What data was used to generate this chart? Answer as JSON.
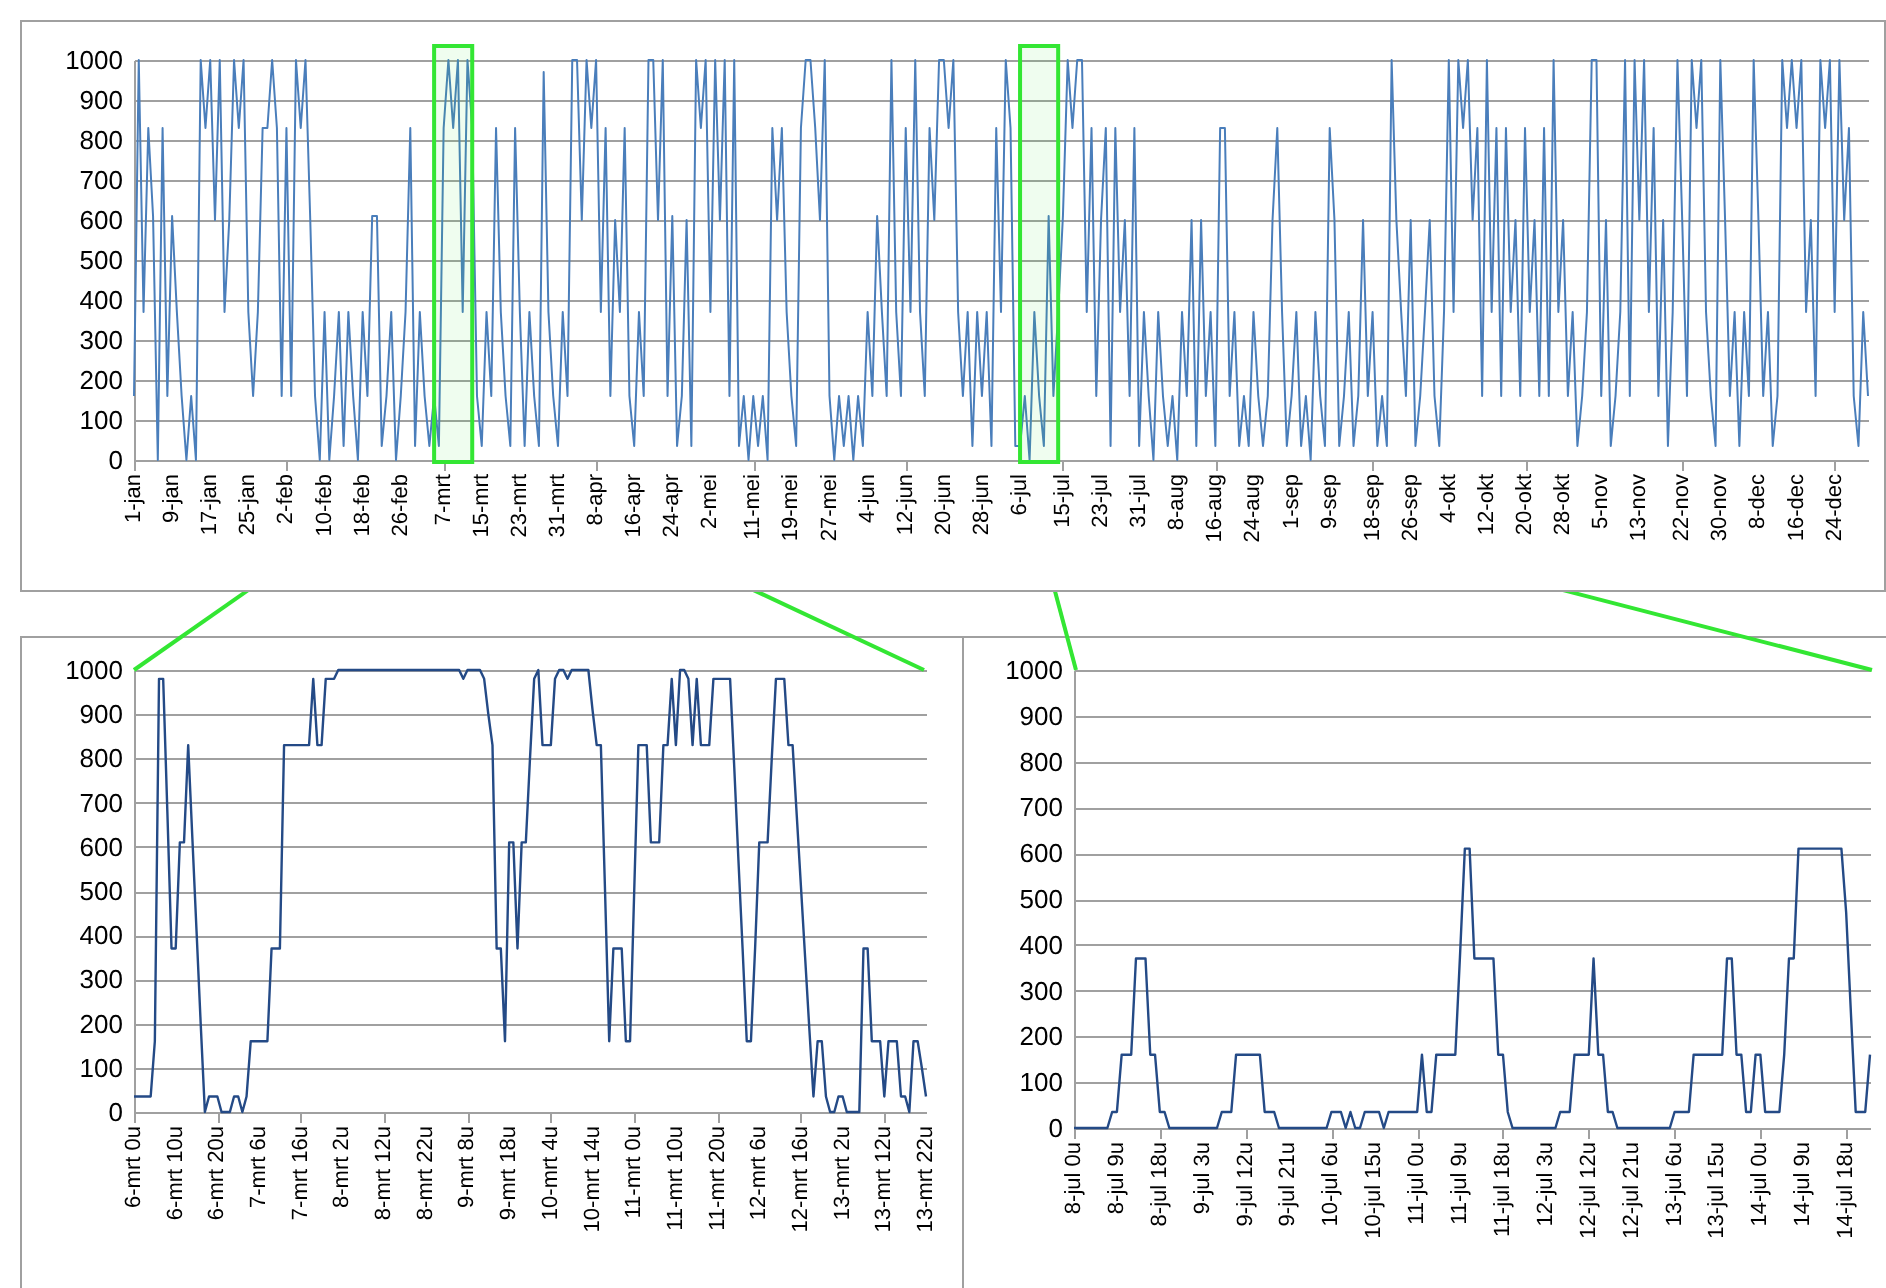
{
  "chart_data": [
    {
      "type": "line",
      "xlim": [
        "--01-01",
        "--12-31"
      ],
      "ylim": [
        0,
        1000
      ],
      "yticks": [
        0,
        100,
        200,
        300,
        400,
        500,
        600,
        700,
        800,
        900,
        1000
      ],
      "xticks": [
        {
          "value": "--01-01",
          "label": "1-jan"
        },
        {
          "value": "--01-09",
          "label": "9-jan"
        },
        {
          "value": "--01-17",
          "label": "17-jan"
        },
        {
          "value": "--01-25",
          "label": "25-jan"
        },
        {
          "value": "--02-02",
          "label": "2-feb"
        },
        {
          "value": "--02-10",
          "label": "10-feb"
        },
        {
          "value": "--02-18",
          "label": "18-feb"
        },
        {
          "value": "--02-26",
          "label": "26-feb"
        },
        {
          "value": "--03-07",
          "label": "7-mrt"
        },
        {
          "value": "--03-15",
          "label": "15-mrt"
        },
        {
          "value": "--03-23",
          "label": "23-mrt"
        },
        {
          "value": "--03-31",
          "label": "31-mrt"
        },
        {
          "value": "--04-08",
          "label": "8-apr"
        },
        {
          "value": "--04-16",
          "label": "16-apr"
        },
        {
          "value": "--04-24",
          "label": "24-apr"
        },
        {
          "value": "--05-02",
          "label": "2-mei"
        },
        {
          "value": "--05-11",
          "label": "11-mei"
        },
        {
          "value": "--05-19",
          "label": "19-mei"
        },
        {
          "value": "--05-27",
          "label": "27-mei"
        },
        {
          "value": "--06-04",
          "label": "4-jun"
        },
        {
          "value": "--06-12",
          "label": "12-jun"
        },
        {
          "value": "--06-20",
          "label": "20-jun"
        },
        {
          "value": "--06-28",
          "label": "28-jun"
        },
        {
          "value": "--07-06",
          "label": "6-jul"
        },
        {
          "value": "--07-15",
          "label": "15-jul"
        },
        {
          "value": "--07-23",
          "label": "23-jul"
        },
        {
          "value": "--07-31",
          "label": "31-jul"
        },
        {
          "value": "--08-08",
          "label": "8-aug"
        },
        {
          "value": "--08-16",
          "label": "16-aug"
        },
        {
          "value": "--08-24",
          "label": "24-aug"
        },
        {
          "value": "--09-01",
          "label": "1-sep"
        },
        {
          "value": "--09-09",
          "label": "9-sep"
        },
        {
          "value": "--09-18",
          "label": "18-sep"
        },
        {
          "value": "--09-26",
          "label": "26-sep"
        },
        {
          "value": "--10-04",
          "label": "4-okt"
        },
        {
          "value": "--10-12",
          "label": "12-okt"
        },
        {
          "value": "--10-20",
          "label": "20-okt"
        },
        {
          "value": "--10-28",
          "label": "28-okt"
        },
        {
          "value": "--11-05",
          "label": "5-nov"
        },
        {
          "value": "--11-13",
          "label": "13-nov"
        },
        {
          "value": "--11-22",
          "label": "22-nov"
        },
        {
          "value": "--11-30",
          "label": "30-nov"
        },
        {
          "value": "--12-08",
          "label": "8-dec"
        },
        {
          "value": "--12-16",
          "label": "16-dec"
        },
        {
          "value": "--12-24",
          "label": "24-dec"
        }
      ],
      "grid": "y",
      "bands": [
        {
          "axis": "x",
          "from": "--03-05",
          "to": "--03-13",
          "color": "#33e633"
        },
        {
          "axis": "x",
          "from": "--07-06",
          "to": "--07-14",
          "color": "#33e633"
        }
      ],
      "x": [
        "--01-01",
        "--01-02",
        "--01-03",
        "--01-04",
        "--01-05",
        "--01-06",
        "--01-07",
        "--01-08",
        "--01-09",
        "--01-10",
        "--01-11",
        "--01-12",
        "--01-13",
        "--01-14",
        "--01-15",
        "--01-16",
        "--01-17",
        "--01-18",
        "--01-19",
        "--01-20",
        "--01-21",
        "--01-22",
        "--01-23",
        "--01-24",
        "--01-25",
        "--01-26",
        "--01-27",
        "--01-28",
        "--01-29",
        "--01-30",
        "--01-31",
        "--02-01",
        "--02-02",
        "--02-03",
        "--02-04",
        "--02-05",
        "--02-06",
        "--02-07",
        "--02-08",
        "--02-09",
        "--02-10",
        "--02-11",
        "--02-12",
        "--02-13",
        "--02-14",
        "--02-15",
        "--02-16",
        "--02-17",
        "--02-18",
        "--02-19",
        "--02-20",
        "--02-21",
        "--02-22",
        "--02-23",
        "--02-24",
        "--02-25",
        "--02-26",
        "--02-27",
        "--02-28",
        "--03-01",
        "--03-02",
        "--03-03",
        "--03-04",
        "--03-05",
        "--03-06",
        "--03-07",
        "--03-08",
        "--03-09",
        "--03-10",
        "--03-11",
        "--03-12",
        "--03-13",
        "--03-14",
        "--03-15",
        "--03-16",
        "--03-17",
        "--03-18",
        "--03-19",
        "--03-20",
        "--03-21",
        "--03-22",
        "--03-23",
        "--03-24",
        "--03-25",
        "--03-26",
        "--03-27",
        "--03-28",
        "--03-29",
        "--03-30",
        "--03-31",
        "--04-01",
        "--04-02",
        "--04-03",
        "--04-04",
        "--04-05",
        "--04-06",
        "--04-07",
        "--04-08",
        "--04-09",
        "--04-10",
        "--04-11",
        "--04-12",
        "--04-13",
        "--04-14",
        "--04-15",
        "--04-16",
        "--04-17",
        "--04-18",
        "--04-19",
        "--04-20",
        "--04-21",
        "--04-22",
        "--04-23",
        "--04-24",
        "--04-25",
        "--04-26",
        "--04-27",
        "--04-28",
        "--04-29",
        "--04-30",
        "--05-01",
        "--05-02",
        "--05-03",
        "--05-04",
        "--05-05",
        "--05-06",
        "--05-07",
        "--05-08",
        "--05-09",
        "--05-10",
        "--05-11",
        "--05-12",
        "--05-13",
        "--05-14",
        "--05-15",
        "--05-16",
        "--05-17",
        "--05-18",
        "--05-19",
        "--05-20",
        "--05-21",
        "--05-22",
        "--05-23",
        "--05-24",
        "--05-25",
        "--05-26",
        "--05-27",
        "--05-28",
        "--05-29",
        "--05-30",
        "--05-31",
        "--06-01",
        "--06-02",
        "--06-03",
        "--06-04",
        "--06-05",
        "--06-06",
        "--06-07",
        "--06-08",
        "--06-09",
        "--06-10",
        "--06-11",
        "--06-12",
        "--06-13",
        "--06-14",
        "--06-15",
        "--06-16",
        "--06-17",
        "--06-18",
        "--06-19",
        "--06-20",
        "--06-21",
        "--06-22",
        "--06-23",
        "--06-24",
        "--06-25",
        "--06-26",
        "--06-27",
        "--06-28",
        "--06-29",
        "--06-30",
        "--07-01",
        "--07-02",
        "--07-03",
        "--07-04",
        "--07-05",
        "--07-06",
        "--07-07",
        "--07-08",
        "--07-09",
        "--07-10",
        "--07-11",
        "--07-12",
        "--07-13",
        "--07-14",
        "--07-15",
        "--07-16",
        "--07-17",
        "--07-18",
        "--07-19",
        "--07-20",
        "--07-21",
        "--07-22",
        "--07-23",
        "--07-24",
        "--07-25",
        "--07-26",
        "--07-27",
        "--07-28",
        "--07-29",
        "--07-30",
        "--07-31",
        "--08-01",
        "--08-02",
        "--08-03",
        "--08-04",
        "--08-05",
        "--08-06",
        "--08-07",
        "--08-08",
        "--08-09",
        "--08-10",
        "--08-11",
        "--08-12",
        "--08-13",
        "--08-14",
        "--08-15",
        "--08-16",
        "--08-17",
        "--08-18",
        "--08-19",
        "--08-20",
        "--08-21",
        "--08-22",
        "--08-23",
        "--08-24",
        "--08-25",
        "--08-26",
        "--08-27",
        "--08-28",
        "--08-29",
        "--08-30",
        "--08-31",
        "--09-01",
        "--09-02",
        "--09-03",
        "--09-04",
        "--09-05",
        "--09-06",
        "--09-07",
        "--09-08",
        "--09-09",
        "--09-10",
        "--09-11",
        "--09-12",
        "--09-13",
        "--09-14",
        "--09-15",
        "--09-16",
        "--09-17",
        "--09-18",
        "--09-19",
        "--09-20",
        "--09-21",
        "--09-22",
        "--09-23",
        "--09-24",
        "--09-25",
        "--09-26",
        "--09-27",
        "--09-28",
        "--09-29",
        "--09-30",
        "--10-01",
        "--10-02",
        "--10-03",
        "--10-04",
        "--10-05",
        "--10-06",
        "--10-07",
        "--10-08",
        "--10-09",
        "--10-10",
        "--10-11",
        "--10-12",
        "--10-13",
        "--10-14",
        "--10-15",
        "--10-16",
        "--10-17",
        "--10-18",
        "--10-19",
        "--10-20",
        "--10-21",
        "--10-22",
        "--10-23",
        "--10-24",
        "--10-25",
        "--10-26",
        "--10-27",
        "--10-28",
        "--10-29",
        "--10-30",
        "--10-31",
        "--11-01",
        "--11-02",
        "--11-03",
        "--11-04",
        "--11-05",
        "--11-06",
        "--11-07",
        "--11-08",
        "--11-09",
        "--11-10",
        "--11-11",
        "--11-12",
        "--11-13",
        "--11-14",
        "--11-15",
        "--11-16",
        "--11-17",
        "--11-18",
        "--11-19",
        "--11-20",
        "--11-21",
        "--11-22",
        "--11-23",
        "--11-24",
        "--11-25",
        "--11-26",
        "--11-27",
        "--11-28",
        "--11-29",
        "--11-30",
        "--12-01",
        "--12-02",
        "--12-03",
        "--12-04",
        "--12-05",
        "--12-06",
        "--12-07",
        "--12-08",
        "--12-09",
        "--12-10",
        "--12-11",
        "--12-12",
        "--12-13",
        "--12-14",
        "--12-15",
        "--12-16",
        "--12-17",
        "--12-18",
        "--12-19",
        "--12-20",
        "--12-21",
        "--12-22",
        "--12-23",
        "--12-24",
        "--12-25",
        "--12-26",
        "--12-27",
        "--12-28",
        "--12-29",
        "--12-30",
        "--12-31"
      ],
      "series": [
        {
          "color": "#4a7ebb",
          "values": [
            160,
            1000,
            370,
            830,
            610,
            0,
            830,
            160,
            610,
            370,
            160,
            0,
            160,
            0,
            1000,
            830,
            1000,
            600,
            1000,
            370,
            600,
            1000,
            830,
            1000,
            370,
            160,
            370,
            830,
            830,
            1000,
            830,
            160,
            830,
            160,
            1000,
            830,
            1000,
            600,
            160,
            0,
            370,
            0,
            160,
            370,
            35,
            370,
            160,
            0,
            370,
            160,
            610,
            610,
            35,
            160,
            370,
            0,
            160,
            370,
            830,
            35,
            370,
            160,
            35,
            160,
            35,
            830,
            1000,
            830,
            1000,
            370,
            1000,
            830,
            160,
            35,
            370,
            160,
            830,
            370,
            160,
            35,
            830,
            370,
            35,
            370,
            160,
            35,
            970,
            370,
            160,
            35,
            370,
            160,
            1000,
            1000,
            600,
            1000,
            830,
            1000,
            370,
            830,
            160,
            600,
            370,
            830,
            160,
            35,
            370,
            160,
            1000,
            1000,
            600,
            1000,
            160,
            610,
            35,
            160,
            600,
            35,
            1000,
            830,
            1000,
            370,
            1000,
            600,
            1000,
            160,
            1000,
            35,
            160,
            0,
            160,
            35,
            160,
            0,
            830,
            600,
            830,
            370,
            160,
            35,
            830,
            1000,
            1000,
            830,
            600,
            1000,
            160,
            0,
            160,
            35,
            160,
            0,
            160,
            35,
            370,
            160,
            610,
            370,
            160,
            1000,
            370,
            160,
            830,
            370,
            1000,
            370,
            160,
            830,
            600,
            1000,
            1000,
            830,
            1000,
            370,
            160,
            370,
            35,
            370,
            160,
            370,
            35,
            830,
            370,
            1000,
            830,
            35,
            35,
            160,
            0,
            370,
            160,
            35,
            610,
            160,
            370,
            610,
            1000,
            830,
            1000,
            1000,
            370,
            830,
            160,
            600,
            830,
            35,
            830,
            370,
            600,
            160,
            830,
            35,
            370,
            160,
            0,
            370,
            160,
            35,
            160,
            0,
            370,
            160,
            600,
            35,
            600,
            160,
            370,
            35,
            830,
            830,
            160,
            370,
            35,
            160,
            35,
            370,
            160,
            35,
            160,
            600,
            830,
            370,
            35,
            160,
            370,
            35,
            160,
            0,
            370,
            160,
            35,
            830,
            600,
            35,
            160,
            370,
            35,
            160,
            600,
            160,
            370,
            35,
            160,
            35,
            1000,
            600,
            370,
            160,
            600,
            35,
            160,
            370,
            600,
            160,
            35,
            370,
            1000,
            370,
            1000,
            830,
            1000,
            600,
            830,
            160,
            1000,
            370,
            830,
            160,
            830,
            370,
            600,
            160,
            830,
            370,
            600,
            160,
            830,
            160,
            1000,
            370,
            600,
            160,
            370,
            35,
            160,
            370,
            1000,
            1000,
            160,
            600,
            35,
            160,
            370,
            1000,
            160,
            1000,
            600,
            1000,
            370,
            830,
            160,
            600,
            35,
            370,
            1000,
            600,
            160,
            1000,
            830,
            1000,
            370,
            160,
            35,
            1000,
            600,
            160,
            370,
            35,
            370,
            160,
            1000,
            600,
            160,
            370,
            35,
            160,
            1000,
            830,
            1000,
            830,
            1000,
            370,
            600,
            160,
            1000,
            830,
            1000,
            370,
            1000,
            600,
            830,
            160,
            35,
            370,
            160
          ]
        }
      ]
    },
    {
      "type": "line",
      "ylim": [
        0,
        1000
      ],
      "yticks": [
        0,
        100,
        200,
        300,
        400,
        500,
        600,
        700,
        800,
        900,
        1000
      ],
      "grid": "y",
      "categories": [
        "6-mrt 0u",
        null,
        null,
        null,
        null,
        null,
        null,
        null,
        null,
        null,
        "6-mrt 10u",
        null,
        null,
        null,
        null,
        null,
        null,
        null,
        null,
        null,
        "6-mrt 20u",
        null,
        null,
        null,
        null,
        null,
        null,
        null,
        null,
        null,
        "7-mrt 6u",
        null,
        null,
        null,
        null,
        null,
        null,
        null,
        null,
        null,
        "7-mrt 16u",
        null,
        null,
        null,
        null,
        null,
        null,
        null,
        null,
        null,
        "8-mrt 2u",
        null,
        null,
        null,
        null,
        null,
        null,
        null,
        null,
        null,
        "8-mrt 12u",
        null,
        null,
        null,
        null,
        null,
        null,
        null,
        null,
        null,
        "8-mrt 22u",
        null,
        null,
        null,
        null,
        null,
        null,
        null,
        null,
        null,
        "9-mrt 8u",
        null,
        null,
        null,
        null,
        null,
        null,
        null,
        null,
        null,
        "9-mrt 18u",
        null,
        null,
        null,
        null,
        null,
        null,
        null,
        null,
        null,
        "10-mrt 4u",
        null,
        null,
        null,
        null,
        null,
        null,
        null,
        null,
        null,
        "10-mrt 14u",
        null,
        null,
        null,
        null,
        null,
        null,
        null,
        null,
        null,
        "11-mrt 0u",
        null,
        null,
        null,
        null,
        null,
        null,
        null,
        null,
        null,
        "11-mrt 10u",
        null,
        null,
        null,
        null,
        null,
        null,
        null,
        null,
        null,
        "11-mrt 20u",
        null,
        null,
        null,
        null,
        null,
        null,
        null,
        null,
        null,
        "12-mrt 6u",
        null,
        null,
        null,
        null,
        null,
        null,
        null,
        null,
        null,
        "12-mrt 16u",
        null,
        null,
        null,
        null,
        null,
        null,
        null,
        null,
        null,
        "13-mrt 2u",
        null,
        null,
        null,
        null,
        null,
        null,
        null,
        null,
        null,
        "13-mrt 12u",
        null,
        null,
        null,
        null,
        null,
        null,
        null,
        null,
        null,
        "13-mrt 22u"
      ],
      "series": [
        {
          "color": "#244a86",
          "values": [
            35,
            35,
            35,
            35,
            35,
            160,
            980,
            980,
            680,
            370,
            370,
            610,
            610,
            830,
            620,
            410,
            200,
            0,
            35,
            35,
            35,
            0,
            0,
            0,
            35,
            35,
            0,
            35,
            160,
            160,
            160,
            160,
            160,
            370,
            370,
            370,
            830,
            830,
            830,
            830,
            830,
            830,
            830,
            980,
            830,
            830,
            980,
            980,
            980,
            1000,
            1000,
            1000,
            1000,
            1000,
            1000,
            1000,
            1000,
            1000,
            1000,
            1000,
            1000,
            1000,
            1000,
            1000,
            1000,
            1000,
            1000,
            1000,
            1000,
            1000,
            1000,
            1000,
            1000,
            1000,
            1000,
            1000,
            1000,
            1000,
            1000,
            980,
            1000,
            1000,
            1000,
            1000,
            980,
            900,
            830,
            370,
            370,
            160,
            610,
            610,
            370,
            610,
            610,
            800,
            980,
            1000,
            830,
            830,
            830,
            980,
            1000,
            1000,
            980,
            1000,
            1000,
            1000,
            1000,
            1000,
            910,
            830,
            830,
            500,
            160,
            370,
            370,
            370,
            160,
            160,
            500,
            830,
            830,
            830,
            610,
            610,
            610,
            830,
            830,
            980,
            830,
            1000,
            1000,
            980,
            830,
            980,
            830,
            830,
            830,
            980,
            980,
            980,
            980,
            980,
            780,
            570,
            370,
            160,
            160,
            370,
            610,
            610,
            610,
            800,
            980,
            980,
            980,
            830,
            830,
            670,
            510,
            350,
            190,
            35,
            160,
            160,
            35,
            0,
            0,
            35,
            35,
            0,
            0,
            0,
            0,
            370,
            370,
            160,
            160,
            160,
            35,
            160,
            160,
            160,
            35,
            35,
            0,
            160,
            160,
            100,
            35
          ]
        }
      ]
    },
    {
      "type": "line",
      "ylim": [
        0,
        1000
      ],
      "yticks": [
        0,
        100,
        200,
        300,
        400,
        500,
        600,
        700,
        800,
        900,
        1000
      ],
      "grid": "y",
      "categories": [
        "8-jul 0u",
        null,
        null,
        null,
        null,
        null,
        null,
        null,
        null,
        "8-jul 9u",
        null,
        null,
        null,
        null,
        null,
        null,
        null,
        null,
        "8-jul 18u",
        null,
        null,
        null,
        null,
        null,
        null,
        null,
        null,
        "9-jul 3u",
        null,
        null,
        null,
        null,
        null,
        null,
        null,
        null,
        "9-jul 12u",
        null,
        null,
        null,
        null,
        null,
        null,
        null,
        null,
        "9-jul 21u",
        null,
        null,
        null,
        null,
        null,
        null,
        null,
        null,
        "10-jul 6u",
        null,
        null,
        null,
        null,
        null,
        null,
        null,
        null,
        "10-jul 15u",
        null,
        null,
        null,
        null,
        null,
        null,
        null,
        null,
        "11-jul 0u",
        null,
        null,
        null,
        null,
        null,
        null,
        null,
        null,
        "11-jul 9u",
        null,
        null,
        null,
        null,
        null,
        null,
        null,
        null,
        "11-jul 18u",
        null,
        null,
        null,
        null,
        null,
        null,
        null,
        null,
        "12-jul 3u",
        null,
        null,
        null,
        null,
        null,
        null,
        null,
        null,
        "12-jul 12u",
        null,
        null,
        null,
        null,
        null,
        null,
        null,
        null,
        "12-jul 21u",
        null,
        null,
        null,
        null,
        null,
        null,
        null,
        null,
        "13-jul 6u",
        null,
        null,
        null,
        null,
        null,
        null,
        null,
        null,
        "13-jul 15u",
        null,
        null,
        null,
        null,
        null,
        null,
        null,
        null,
        "14-jul 0u",
        null,
        null,
        null,
        null,
        null,
        null,
        null,
        null,
        "14-jul 9u",
        null,
        null,
        null,
        null,
        null,
        null,
        null,
        null,
        "14-jul 18u",
        null,
        null,
        null,
        null,
        null
      ],
      "series": [
        {
          "color": "#244a86",
          "values": [
            0,
            0,
            0,
            0,
            0,
            0,
            0,
            0,
            35,
            35,
            160,
            160,
            160,
            370,
            370,
            370,
            160,
            160,
            35,
            35,
            0,
            0,
            0,
            0,
            0,
            0,
            0,
            0,
            0,
            0,
            0,
            35,
            35,
            35,
            160,
            160,
            160,
            160,
            160,
            160,
            35,
            35,
            35,
            0,
            0,
            0,
            0,
            0,
            0,
            0,
            0,
            0,
            0,
            0,
            35,
            35,
            35,
            0,
            35,
            0,
            0,
            35,
            35,
            35,
            35,
            0,
            35,
            35,
            35,
            35,
            35,
            35,
            35,
            160,
            35,
            35,
            160,
            160,
            160,
            160,
            160,
            380,
            610,
            610,
            370,
            370,
            370,
            370,
            370,
            160,
            160,
            35,
            0,
            0,
            0,
            0,
            0,
            0,
            0,
            0,
            0,
            0,
            35,
            35,
            35,
            160,
            160,
            160,
            160,
            370,
            160,
            160,
            35,
            35,
            0,
            0,
            0,
            0,
            0,
            0,
            0,
            0,
            0,
            0,
            0,
            0,
            35,
            35,
            35,
            35,
            160,
            160,
            160,
            160,
            160,
            160,
            160,
            370,
            370,
            160,
            160,
            35,
            35,
            160,
            160,
            35,
            35,
            35,
            35,
            160,
            370,
            370,
            610,
            610,
            610,
            610,
            610,
            610,
            610,
            610,
            610,
            610,
            470,
            250,
            35,
            35,
            35,
            160
          ]
        }
      ]
    }
  ]
}
